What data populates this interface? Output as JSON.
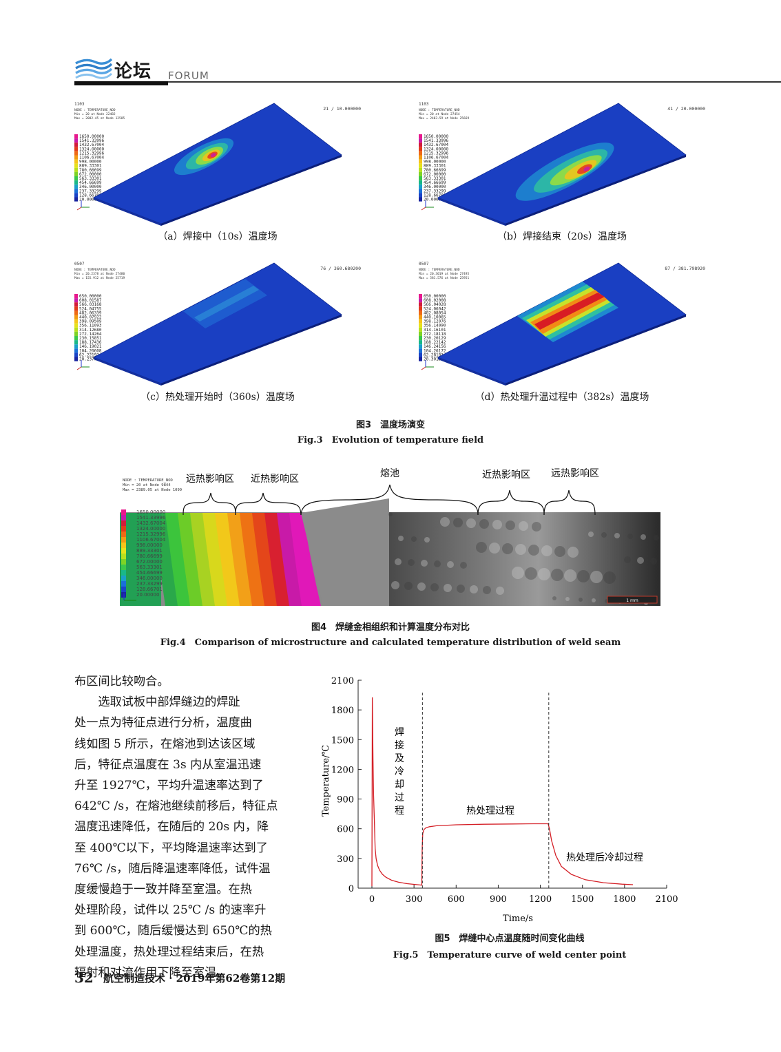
{
  "header": {
    "logo_text": "论坛",
    "section": "FORUM"
  },
  "figure3": {
    "panels": [
      {
        "id": "a",
        "caption": "（a）焊接中（10s）温度场",
        "label_top": "1103",
        "node_title": "NODE : TEMPERATURE_NOD",
        "min": "Min = 20 at Node 22482",
        "max": "Max = 2082.45 at Node 12585",
        "step": "21 / 10.000000",
        "legend": [
          "1650.00000",
          "1541.33996",
          "1432.67004",
          "1324.00000",
          "1215.32996",
          "1106.67004",
          "998.00000",
          "889.33301",
          "780.66699",
          "672.00000",
          "563.33301",
          "454.66699",
          "346.00000",
          "237.33299",
          "128.66701",
          "20.00000"
        ]
      },
      {
        "id": "b",
        "caption": "（b）焊接结束（20s）温度场",
        "label_top": "1103",
        "node_title": "NODE : TEMPERATURE_NOD",
        "min": "Min = 20 at Node 27454",
        "max": "Max = 2403.59 at Node 25669",
        "step": "41 / 20.000000",
        "legend": [
          "1650.00000",
          "1541.33996",
          "1432.67004",
          "1324.00000",
          "1215.32996",
          "1106.67004",
          "998.00000",
          "889.33301",
          "780.66699",
          "672.00000",
          "563.33301",
          "454.66699",
          "346.00000",
          "237.33299",
          "128.66701",
          "20.00000"
        ]
      },
      {
        "id": "c",
        "caption": "（c）热处理开始时（360s）温度场",
        "label_top": "0507",
        "node_title": "NODE : TEMPERATURE_NOD",
        "min": "Min = 20.2378 at Node 27480",
        "max": "Max = 155.912 at Node 25719",
        "step": "76 / 360.680200",
        "legend": [
          "650.00000",
          "608.01587",
          "566.03168",
          "524.04755",
          "482.06339",
          "440.07922",
          "398.09509",
          "356.11093",
          "314.12680",
          "272.14264",
          "230.15851",
          "188.17436",
          "146.19021",
          "104.20608",
          "62.22192",
          "20.23777"
        ]
      },
      {
        "id": "d",
        "caption": "（d）热处理升温过程中（382s）温度场",
        "label_top": "0507",
        "node_title": "NODE : TEMPERATURE_NOD",
        "min": "Min = 20.3019 at Node 27495",
        "max": "Max = 581.576 at Node 25951",
        "step": "87 / 381.798920",
        "legend": [
          "650.00000",
          "608.02008",
          "566.04028",
          "524.06042",
          "482.08054",
          "440.10065",
          "398.12076",
          "356.14090",
          "314.16101",
          "272.18118",
          "230.20129",
          "188.22142",
          "146.24156",
          "104.26172",
          "62.28183",
          "20.30194"
        ]
      }
    ],
    "caption_cn": "图3　温度场演变",
    "caption_en": "Fig.3　Evolution of temperature field"
  },
  "figure4": {
    "header_lines": [
      "NODE : TEMPERATURE_NOD",
      "Min = 20 at Node 9844",
      "Max = 2389.05 at Node 1099"
    ],
    "regions": [
      "远热影响区",
      "近热影响区",
      "熔池",
      "近热影响区",
      "远热影响区"
    ],
    "legend": [
      "1650.00000",
      "1541.33996",
      "1432.67004",
      "1324.00000",
      "1215.32996",
      "1106.67004",
      "998.00000",
      "889.33301",
      "780.66699",
      "672.00000",
      "563.33301",
      "454.66699",
      "346.00000",
      "237.33299",
      "128.66701",
      "20.00000"
    ],
    "scale_bar": "1 mm",
    "caption_cn": "图4　焊缝金相组织和计算温度分布对比",
    "caption_en": "Fig.4　Comparison of microstructure and calculated temperature distribution of weld seam"
  },
  "body": {
    "lines": [
      "布区间比较吻合。",
      "　　选取试板中部焊缝边的焊趾",
      "处一点为特征点进行分析，温度曲",
      "线如图 5 所示，在熔池到达该区域",
      "后，特征点温度在 3s 内从室温迅速",
      "升至 1927℃，平均升温速率达到了",
      "642℃ /s，在熔池继续前移后，特征点",
      "温度迅速降低，在随后的 20s 内，降",
      "至 400℃以下，平均降温速率达到了",
      "76℃ /s，随后降温速率降低，试件温",
      "度缓慢趋于一致并降至室温。在热",
      "处理阶段，试件以 25℃ /s 的速率升",
      "到 600℃，随后缓慢达到 650℃的热",
      "处理温度，热处理过程结束后，在热",
      "辐射和对流作用下降至室温。"
    ]
  },
  "figure5": {
    "caption_cn": "图5　焊缝中心点温度随时间变化曲线",
    "caption_en": "Fig.5　Temperature curve of weld center point"
  },
  "chart_data": {
    "type": "line",
    "xlabel": "Time/s",
    "ylabel": "Temperature/℃",
    "xlim": [
      0,
      2100
    ],
    "ylim": [
      0,
      2100
    ],
    "xticks": [
      0,
      300,
      600,
      900,
      1200,
      1500,
      1800,
      2100
    ],
    "yticks": [
      0,
      300,
      600,
      900,
      1200,
      1500,
      1800,
      2100
    ],
    "series": [
      {
        "x": [
          0,
          1,
          3,
          5,
          8,
          12,
          18,
          23,
          30,
          40,
          55,
          75,
          100,
          140,
          190,
          250,
          300,
          355,
          358,
          362,
          370,
          385,
          410,
          460,
          600,
          800,
          1000,
          1150,
          1255,
          1265,
          1280,
          1310,
          1350,
          1420,
          1520,
          1650,
          1780,
          1860
        ],
        "y": [
          20,
          600,
          1927,
          1700,
          1300,
          950,
          650,
          400,
          300,
          230,
          180,
          140,
          110,
          80,
          60,
          45,
          38,
          30,
          400,
          550,
          590,
          610,
          620,
          630,
          640,
          645,
          648,
          650,
          650,
          600,
          480,
          330,
          220,
          140,
          85,
          55,
          40,
          35
        ]
      }
    ],
    "vlines": [
      360,
      1260
    ],
    "annotations": [
      "焊接及冷却过程",
      "热处理过程",
      "热处理后冷却过程"
    ],
    "line_color": "#d41f26"
  },
  "footer": {
    "page": "32",
    "journal": "航空制造技术 · 2019年第62卷第12期"
  }
}
